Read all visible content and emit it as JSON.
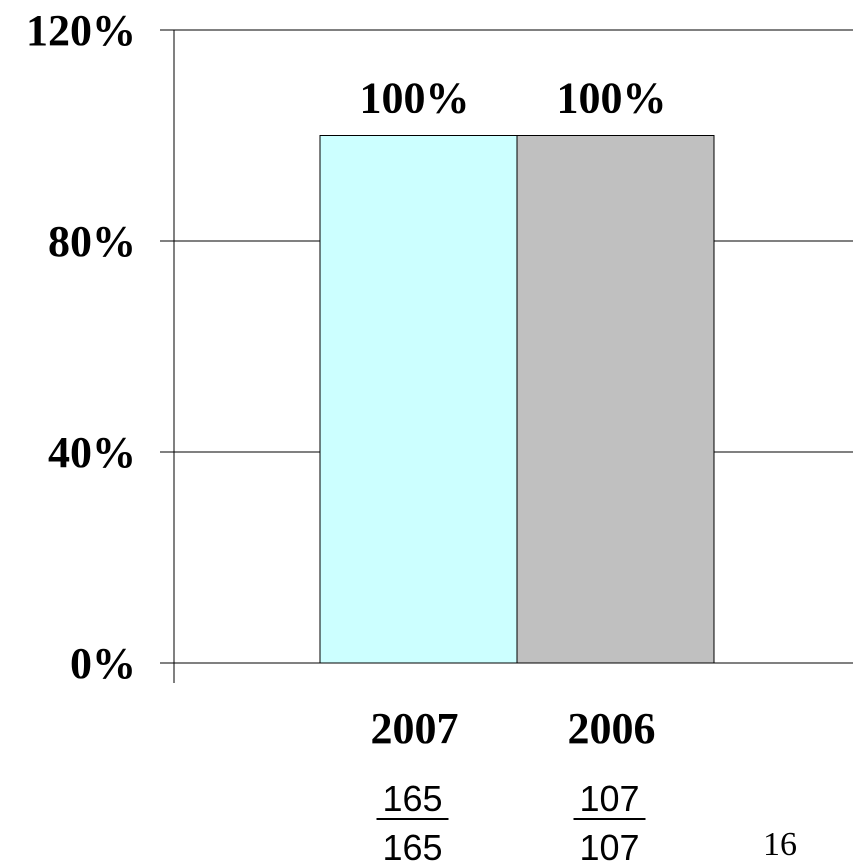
{
  "chart_data": {
    "type": "bar",
    "categories": [
      "2007",
      "2006"
    ],
    "values": [
      100,
      100
    ],
    "data_labels": [
      "100%",
      "100%"
    ],
    "colors": [
      "#ccffff",
      "#c0c0c0"
    ],
    "ylim": [
      0,
      120
    ],
    "y_ticks": [
      {
        "value": 0,
        "label": "0%"
      },
      {
        "value": 40,
        "label": "40%"
      },
      {
        "value": 80,
        "label": "80%"
      },
      {
        "value": 120,
        "label": "120%"
      }
    ],
    "grid": true,
    "title": "",
    "xlabel": "",
    "ylabel": ""
  },
  "fractions": [
    {
      "numerator": "165",
      "denominator": "165"
    },
    {
      "numerator": "107",
      "denominator": "107"
    }
  ],
  "page_number": "16"
}
